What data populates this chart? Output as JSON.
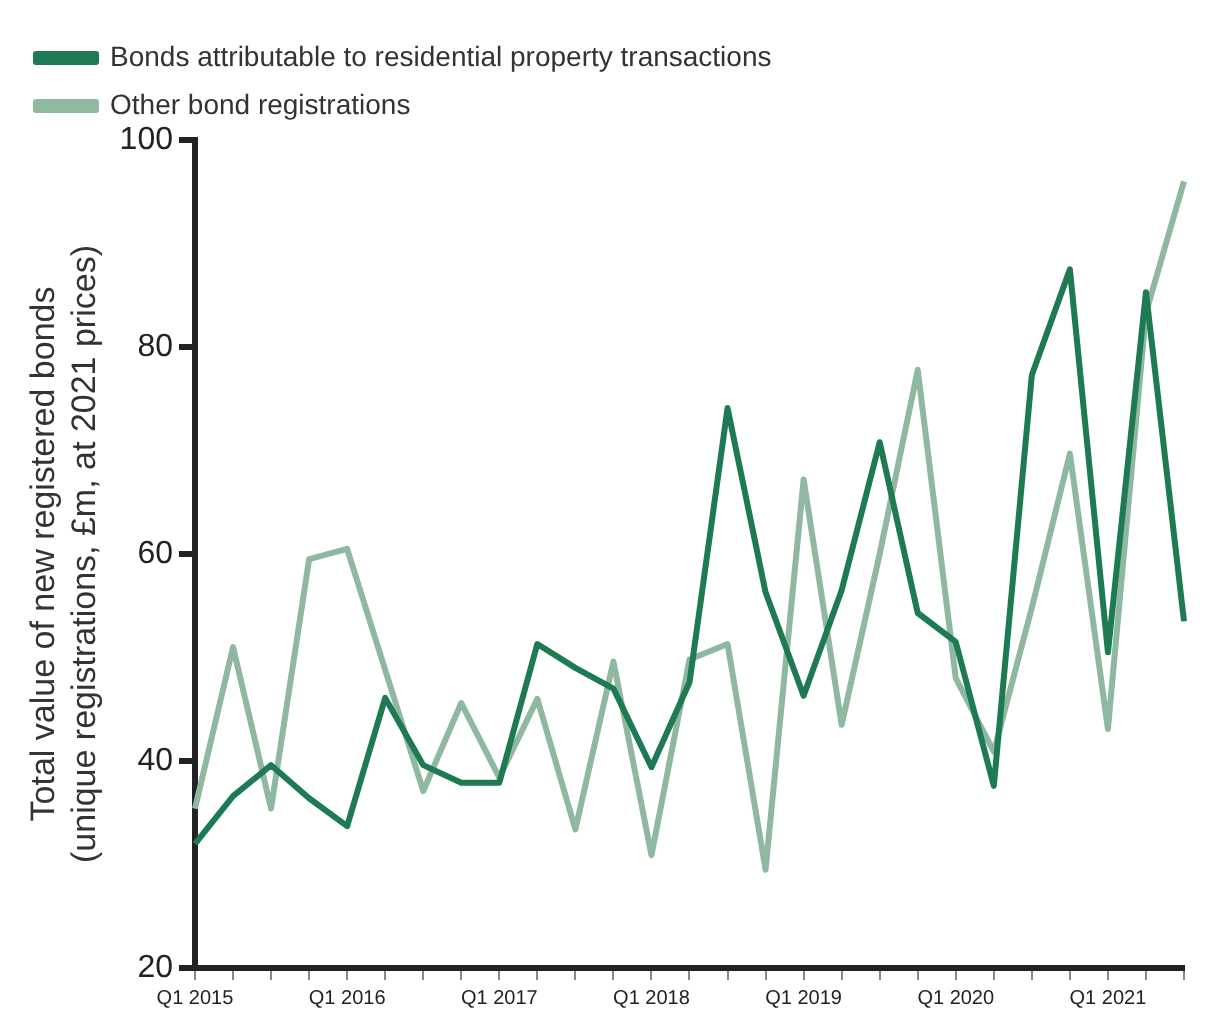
{
  "chart_data": {
    "type": "line",
    "ylabel": "Total value of new registered bonds\n(unique registrations, £m, at 2021 prices)",
    "categories": [
      "Q1 2015",
      null,
      null,
      null,
      "Q1 2016",
      null,
      null,
      null,
      "Q1 2017",
      null,
      null,
      null,
      "Q1 2018",
      null,
      null,
      null,
      "Q1 2019",
      null,
      null,
      null,
      "Q1 2020",
      null,
      null,
      null,
      "Q1 2021",
      null,
      null
    ],
    "series": [
      {
        "name": "Bonds attributable to residential property transactions",
        "color": "#1e7a52",
        "values": [
          32,
          36.6,
          39.6,
          36.4,
          33.7,
          46.1,
          39.6,
          37.9,
          37.9,
          51.3,
          49,
          47,
          39.4,
          47.6,
          74.1,
          56.3,
          46.3,
          56.5,
          70.8,
          54.3,
          51.5,
          37.6,
          77.3,
          87.5,
          50.5,
          85.3,
          53.5
        ]
      },
      {
        "name": "Other bond registrations",
        "color": "#8fb8a0",
        "values": [
          35.4,
          51,
          35.4,
          59.5,
          60.5,
          48.8,
          37.1,
          45.6,
          38.4,
          46,
          33.4,
          49.6,
          30.9,
          49.8,
          51.3,
          29.5,
          67.2,
          43.5,
          60,
          77.8,
          48,
          40.9,
          54.8,
          69.7,
          43.1,
          83.3,
          96
        ]
      }
    ],
    "ylim": [
      20,
      100
    ],
    "yticks": [
      20,
      40,
      60,
      80,
      100
    ],
    "grid": false,
    "legend": "top left",
    "marker": "none",
    "line_style": "solid"
  }
}
